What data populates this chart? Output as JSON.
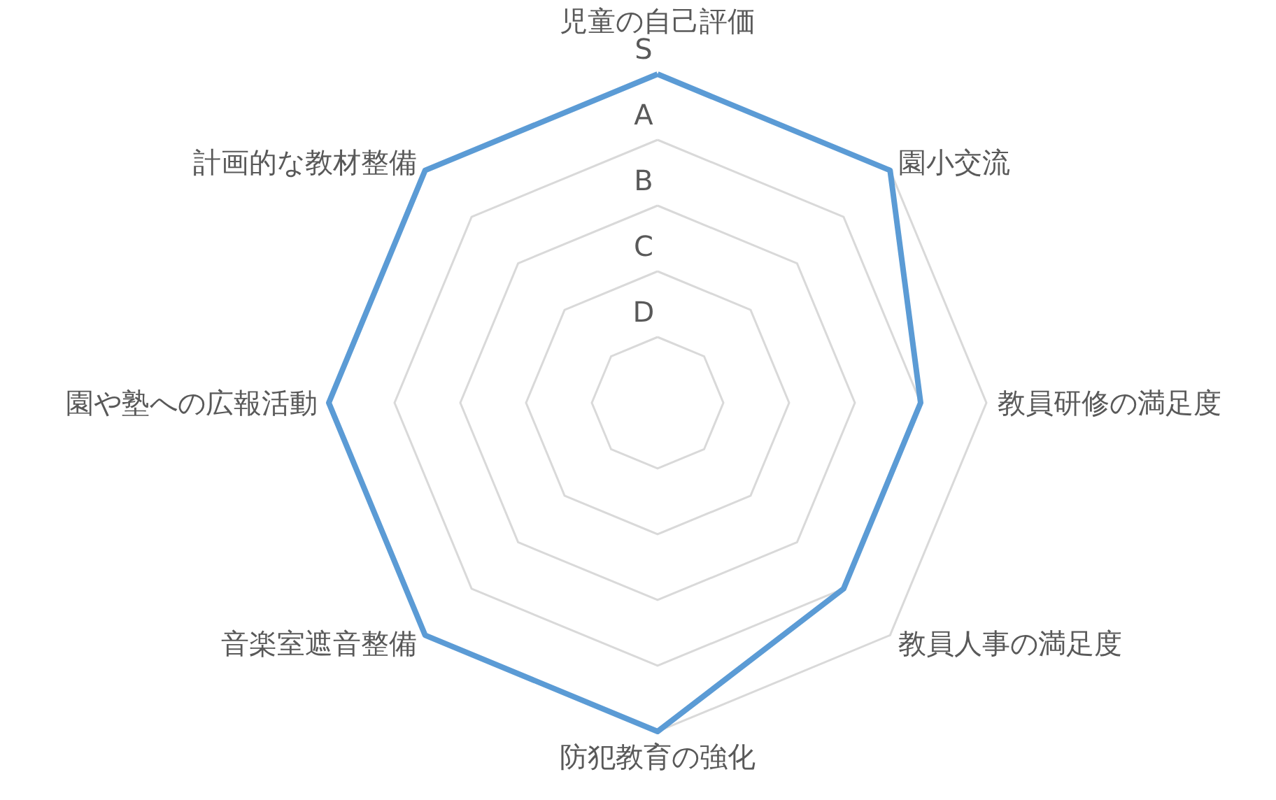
{
  "chart_data": {
    "type": "radar",
    "categories": [
      "児童の自己評価",
      "園小交流",
      "教員研修の満足度",
      "教員人事の満足度",
      "防犯教育の強化",
      "音楽室遮音整備",
      "園や塾への広報活動",
      "計画的な教材整備"
    ],
    "series": [
      {
        "color": "#5b9bd5",
        "values": [
          5,
          5,
          4,
          4,
          5,
          5,
          5,
          5
        ]
      }
    ],
    "ylim": [
      0,
      5
    ],
    "yticks": [
      {
        "value": 1,
        "label": "D"
      },
      {
        "value": 2,
        "label": "C"
      },
      {
        "value": 3,
        "label": "B"
      },
      {
        "value": 4,
        "label": "A"
      },
      {
        "value": 5,
        "label": "S"
      }
    ],
    "grid": true,
    "marker": "none",
    "line_style": "solid"
  }
}
